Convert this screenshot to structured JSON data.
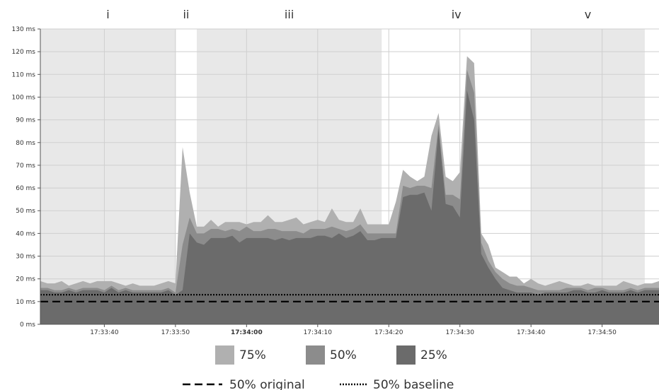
{
  "chart_data": {
    "type": "area",
    "x_start": "17:33:31",
    "x_step_seconds": 1,
    "x_ticks": [
      {
        "label": "17:33:40",
        "bold": false
      },
      {
        "label": "17:33:50",
        "bold": false
      },
      {
        "label": "17:34:00",
        "bold": true
      },
      {
        "label": "17:34:10",
        "bold": false
      },
      {
        "label": "17:34:20",
        "bold": false
      },
      {
        "label": "17:34:30",
        "bold": false
      },
      {
        "label": "17:34:40",
        "bold": false
      },
      {
        "label": "17:34:50",
        "bold": false
      }
    ],
    "y_ticks": [
      "0 ms",
      "10 ms",
      "20 ms",
      "30 ms",
      "40 ms",
      "50 ms",
      "60 ms",
      "70 ms",
      "80 ms",
      "90 ms",
      "100 ms",
      "110 ms",
      "120 ms",
      "130 ms"
    ],
    "ylim": [
      0,
      130
    ],
    "grid": true,
    "phases": [
      {
        "label": "i",
        "shaded": true,
        "start": "17:33:31",
        "end": "17:33:50"
      },
      {
        "label": "ii",
        "shaded": false,
        "start": "17:33:50",
        "end": "17:33:53"
      },
      {
        "label": "iii",
        "shaded": true,
        "start": "17:33:53",
        "end": "17:34:19"
      },
      {
        "label": "iv",
        "shaded": false,
        "start": "17:34:19",
        "end": "17:34:40"
      },
      {
        "label": "v",
        "shaded": true,
        "start": "17:34:40",
        "end": "17:34:56"
      }
    ],
    "colors": {
      "p75": "#b0b0b0",
      "p50": "#8c8c8c",
      "p25": "#6b6b6b",
      "phase_shade": "#e8e8e8",
      "lines": "#000000"
    },
    "series": [
      {
        "name": "75%",
        "values": [
          19,
          18,
          18,
          19,
          17,
          18,
          19,
          18,
          19,
          19,
          19,
          18,
          17,
          18,
          17,
          17,
          17,
          18,
          19,
          18,
          78,
          58,
          43,
          43,
          46,
          43,
          45,
          45,
          45,
          44,
          45,
          45,
          48,
          45,
          45,
          46,
          47,
          44,
          45,
          46,
          45,
          51,
          46,
          45,
          45,
          51,
          44,
          44,
          44,
          44,
          54,
          68,
          65,
          63,
          65,
          83,
          93,
          65,
          63,
          67,
          118,
          115,
          40,
          35,
          25,
          23,
          21,
          21,
          18,
          20,
          18,
          17,
          18,
          19,
          18,
          17,
          17,
          18,
          17,
          17,
          17,
          17,
          19,
          18,
          17,
          18,
          18,
          19
        ]
      },
      {
        "name": "50%",
        "values": [
          16,
          16,
          15,
          15,
          16,
          15,
          16,
          16,
          16,
          15,
          17,
          15,
          16,
          15,
          15,
          15,
          15,
          15,
          16,
          14,
          35,
          47,
          40,
          40,
          42,
          42,
          41,
          42,
          41,
          43,
          41,
          41,
          42,
          42,
          41,
          41,
          41,
          40,
          42,
          42,
          42,
          43,
          42,
          41,
          42,
          44,
          40,
          40,
          40,
          40,
          40,
          61,
          60,
          61,
          61,
          60,
          88,
          57,
          57,
          55,
          112,
          102,
          36,
          28,
          23,
          20,
          18,
          17,
          17,
          16,
          15,
          15,
          15,
          15,
          16,
          16,
          16,
          15,
          16,
          16,
          15,
          15,
          15,
          16,
          15,
          16,
          16,
          16
        ]
      },
      {
        "name": "25%",
        "values": [
          15,
          15,
          14,
          14,
          15,
          14,
          15,
          15,
          15,
          14,
          16,
          14,
          15,
          14,
          14,
          14,
          14,
          14,
          15,
          13,
          15,
          40,
          36,
          35,
          38,
          38,
          38,
          39,
          36,
          38,
          38,
          38,
          38,
          37,
          38,
          37,
          38,
          38,
          38,
          39,
          39,
          38,
          40,
          38,
          39,
          41,
          37,
          37,
          38,
          38,
          38,
          56,
          57,
          57,
          58,
          50,
          86,
          53,
          52,
          47,
          103,
          90,
          31,
          25,
          20,
          16,
          15,
          14,
          14,
          14,
          13,
          14,
          14,
          14,
          14,
          15,
          15,
          14,
          14,
          15,
          14,
          14,
          14,
          15,
          14,
          15,
          15,
          15
        ]
      },
      {
        "name": "50% original",
        "style": "dashed",
        "value": 10
      },
      {
        "name": "50% baseline",
        "style": "dotted",
        "value": 13
      }
    ]
  },
  "legend": {
    "p75": "75%",
    "p50": "50%",
    "p25": "25%",
    "original": "50% original",
    "baseline": "50% baseline"
  }
}
